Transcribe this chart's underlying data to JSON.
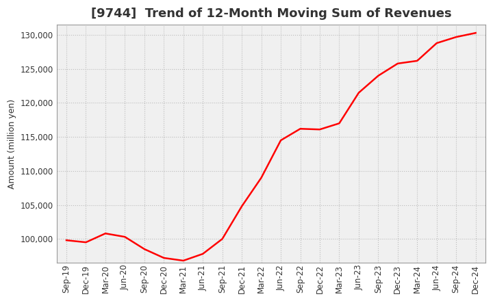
{
  "title": "[9744]  Trend of 12-Month Moving Sum of Revenues",
  "ylabel": "Amount (million yen)",
  "line_color": "#FF0000",
  "background_color": "#FFFFFF",
  "plot_bg_color": "#F0F0F0",
  "grid_color": "#BBBBBB",
  "x_labels": [
    "Sep-19",
    "Dec-19",
    "Mar-20",
    "Jun-20",
    "Sep-20",
    "Dec-20",
    "Mar-21",
    "Jun-21",
    "Sep-21",
    "Dec-21",
    "Mar-22",
    "Jun-22",
    "Sep-22",
    "Dec-22",
    "Mar-23",
    "Jun-23",
    "Sep-23",
    "Dec-23",
    "Mar-24",
    "Jun-24",
    "Sep-24",
    "Dec-24"
  ],
  "y_values": [
    99800,
    99500,
    100800,
    100300,
    98500,
    97200,
    96800,
    97800,
    100000,
    104800,
    109000,
    114500,
    116200,
    116100,
    117000,
    121500,
    124000,
    125800,
    126200,
    128800,
    129700,
    130300
  ],
  "ylim": [
    96500,
    131500
  ],
  "yticks": [
    100000,
    105000,
    110000,
    115000,
    120000,
    125000,
    130000
  ],
  "title_fontsize": 13,
  "tick_fontsize": 8.5,
  "ylabel_fontsize": 9
}
